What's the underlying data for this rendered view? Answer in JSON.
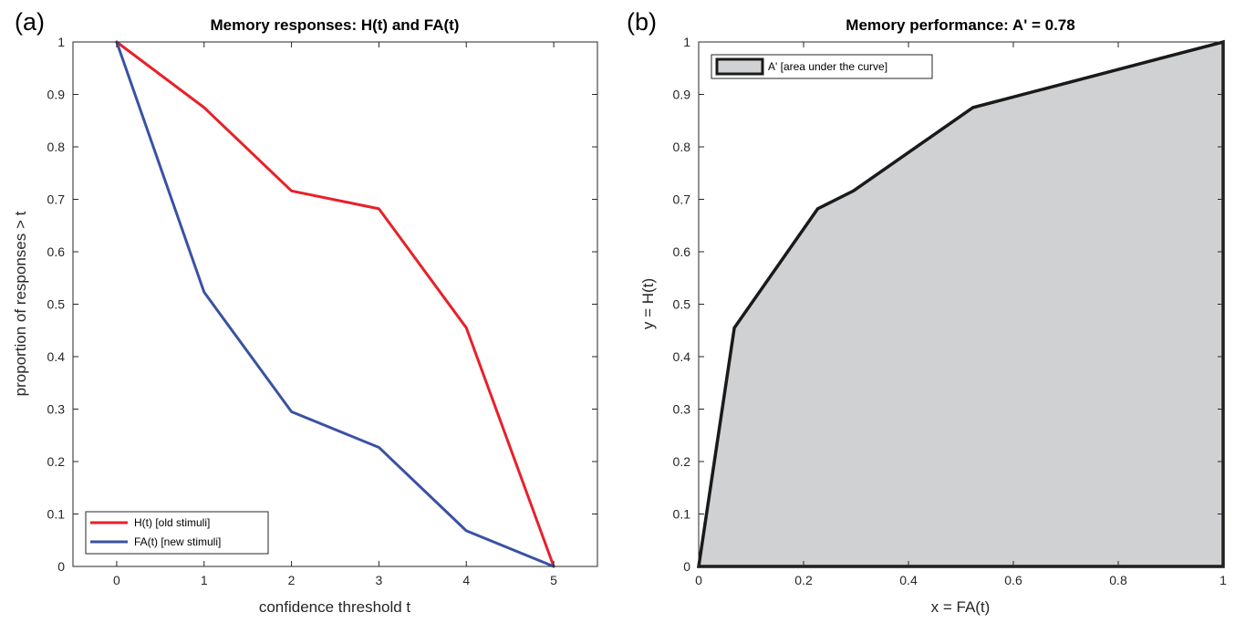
{
  "panels": {
    "a": {
      "letter": "(a)"
    },
    "b": {
      "letter": "(b)"
    }
  },
  "chart_data": [
    {
      "type": "line",
      "title": "Memory responses: H(t) and FA(t)",
      "xlabel": "confidence threshold t",
      "ylabel": "proportion of responses > t",
      "xlim": [
        -0.5,
        5.5
      ],
      "ylim": [
        0,
        1
      ],
      "xticks": [
        0,
        1,
        2,
        3,
        4,
        5
      ],
      "xtick_labels": [
        "0",
        "1",
        "2",
        "3",
        "4",
        "5"
      ],
      "yticks": [
        0,
        0.1,
        0.2,
        0.3,
        0.4,
        0.5,
        0.6,
        0.7,
        0.8,
        0.9,
        1
      ],
      "ytick_labels": [
        "0",
        "0.1",
        "0.2",
        "0.3",
        "0.4",
        "0.5",
        "0.6",
        "0.7",
        "0.8",
        "0.9",
        "1"
      ],
      "grid": false,
      "legend": "bottom-left",
      "x": [
        0,
        1,
        2,
        3,
        4,
        5
      ],
      "series": [
        {
          "name": "H(t) [old stimuli]",
          "color": "#e8202a",
          "values": [
            1,
            0.875,
            0.716,
            0.682,
            0.455,
            0
          ]
        },
        {
          "name": "FA(t) [new stimuli]",
          "color": "#3a52a3",
          "values": [
            1,
            0.523,
            0.295,
            0.227,
            0.068,
            0
          ]
        }
      ]
    },
    {
      "type": "area",
      "title": "Memory performance: A' = 0.78",
      "xlabel": "x = FA(t)",
      "ylabel": "y = H(t)",
      "xlim": [
        0,
        1
      ],
      "ylim": [
        0,
        1
      ],
      "xticks": [
        0,
        0.2,
        0.4,
        0.6,
        0.8,
        1
      ],
      "xtick_labels": [
        "0",
        "0.2",
        "0.4",
        "0.6",
        "0.8",
        "1"
      ],
      "yticks": [
        0,
        0.1,
        0.2,
        0.3,
        0.4,
        0.5,
        0.6,
        0.7,
        0.8,
        0.9,
        1
      ],
      "ytick_labels": [
        "0",
        "0.1",
        "0.2",
        "0.3",
        "0.4",
        "0.5",
        "0.6",
        "0.7",
        "0.8",
        "0.9",
        "1"
      ],
      "grid": false,
      "legend": "top-left",
      "fill_color": "#d0d1d3",
      "edge_color": "#1a1a1a",
      "series": [
        {
          "name": "A' [area under the curve]",
          "x": [
            0,
            0.068,
            0.227,
            0.295,
            0.523,
            1,
            1
          ],
          "y": [
            0,
            0.455,
            0.682,
            0.716,
            0.875,
            1,
            0
          ]
        }
      ]
    }
  ]
}
